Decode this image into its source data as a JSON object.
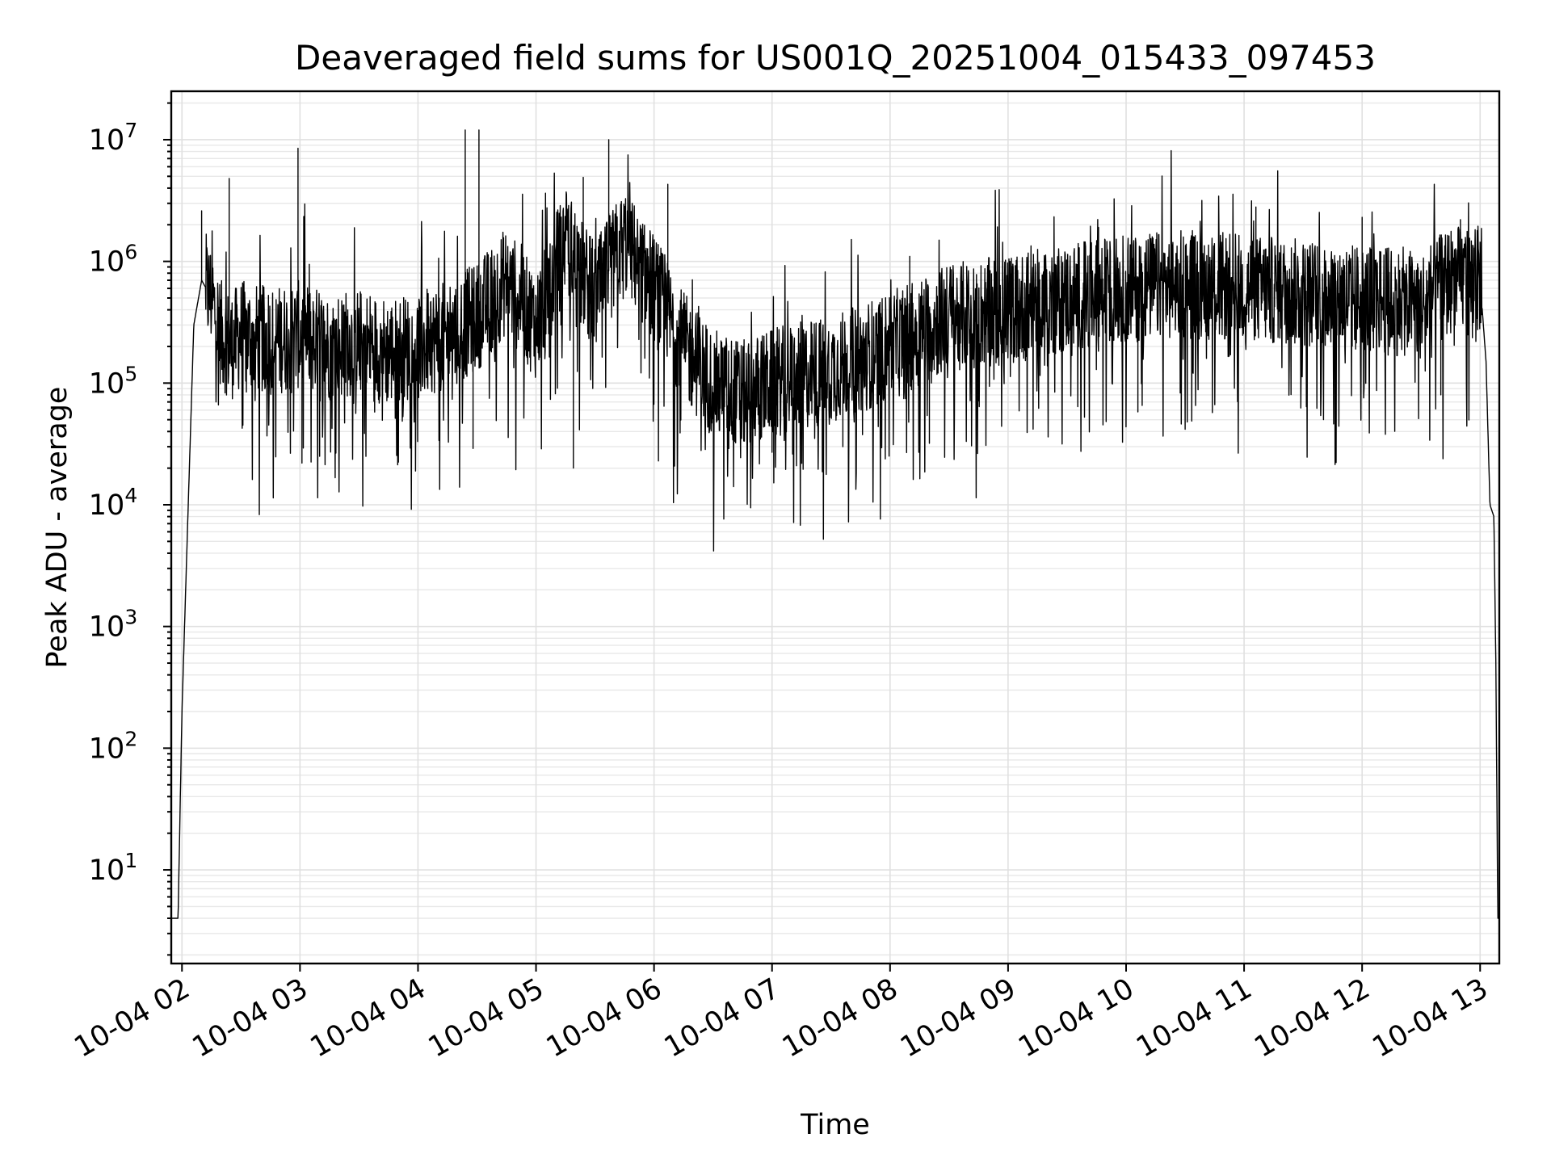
{
  "chart_data": {
    "type": "line",
    "title": "Deaveraged field sums for US001Q_20251004_015433_097453",
    "xlabel": "Time",
    "ylabel": "Peak ADU - average",
    "yscale": "log",
    "grid": true,
    "x_time_range": [
      "2025-10-04T01:54:33",
      "2025-10-04T13:09:45"
    ],
    "ylim": [
      1.7,
      25000000
    ],
    "x_ticks": [
      "10-04 02",
      "10-04 03",
      "10-04 04",
      "10-04 05",
      "10-04 06",
      "10-04 07",
      "10-04 08",
      "10-04 09",
      "10-04 10",
      "10-04 11",
      "10-04 12",
      "10-04 13"
    ],
    "y_tick_exponents": [
      "1",
      "2",
      "3",
      "4",
      "5",
      "6",
      "7"
    ],
    "y_tick_base": "10",
    "series": [
      {
        "color": "#000000",
        "x": [
          "2025-10-04T01:55",
          "2025-10-04T01:58",
          "2025-10-04T02:00",
          "2025-10-04T02:03",
          "2025-10-04T02:06",
          "2025-10-04T02:10",
          "2025-10-04T02:15",
          "2025-10-04T02:20",
          "2025-10-04T02:25",
          "2025-10-04T02:30",
          "2025-10-04T02:45",
          "2025-10-04T03:00",
          "2025-10-04T03:15",
          "2025-10-04T03:30",
          "2025-10-04T03:45",
          "2025-10-04T04:00",
          "2025-10-04T04:15",
          "2025-10-04T04:30",
          "2025-10-04T04:45",
          "2025-10-04T05:00",
          "2025-10-04T05:15",
          "2025-10-04T05:30",
          "2025-10-04T05:45",
          "2025-10-04T06:00",
          "2025-10-04T06:15",
          "2025-10-04T06:30",
          "2025-10-04T06:45",
          "2025-10-04T07:00",
          "2025-10-04T07:30",
          "2025-10-04T08:00",
          "2025-10-04T08:30",
          "2025-10-04T09:00",
          "2025-10-04T09:30",
          "2025-10-04T10:00",
          "2025-10-04T10:30",
          "2025-10-04T11:00",
          "2025-10-04T11:30",
          "2025-10-04T12:00",
          "2025-10-04T12:30",
          "2025-10-04T12:45",
          "2025-10-04T13:00",
          "2025-10-04T13:03",
          "2025-10-04T13:05",
          "2025-10-04T13:07",
          "2025-10-04T13:08",
          "2025-10-04T13:09"
        ],
        "values": [
          4,
          4,
          200,
          8000,
          300000,
          700000,
          500000,
          250000,
          200000,
          250000,
          220000,
          250000,
          200000,
          220000,
          180000,
          200000,
          250000,
          350000,
          700000,
          300000,
          1500000,
          500000,
          1500000,
          600000,
          200000,
          100000,
          80000,
          100000,
          130000,
          200000,
          350000,
          400000,
          500000,
          600000,
          650000,
          600000,
          550000,
          500000,
          450000,
          700000,
          700000,
          150000,
          10000,
          8000,
          500,
          4
        ],
        "peaks_x": [
          "2025-10-04T02:10",
          "2025-10-04T02:24",
          "2025-10-04T02:59",
          "2025-10-04T04:24",
          "2025-10-04T04:31",
          "2025-10-04T05:24",
          "2025-10-04T05:37",
          "2025-10-04T06:07",
          "2025-10-04T08:10",
          "2025-10-04T09:46",
          "2025-10-04T11:06",
          "2025-10-04T12:00",
          "2025-10-04T12:50"
        ],
        "peaks_values": [
          2600000,
          4800000,
          8500000,
          12000000,
          12000000,
          4900000,
          10000000,
          4300000,
          1100000,
          1900000,
          2800000,
          2300000,
          2200000
        ],
        "dips_x": [
          "2025-10-04T03:01",
          "2025-10-04T03:10",
          "2025-10-04T04:28",
          "2025-10-04T05:19",
          "2025-10-04T06:38",
          "2025-10-04T07:00",
          "2025-10-04T07:36",
          "2025-10-04T08:20",
          "2025-10-04T10:06",
          "2025-10-04T12:40"
        ],
        "dips_values": [
          22000,
          25000,
          29000,
          20000,
          29000,
          27000,
          30000,
          32000,
          58000,
          80000
        ]
      }
    ]
  }
}
